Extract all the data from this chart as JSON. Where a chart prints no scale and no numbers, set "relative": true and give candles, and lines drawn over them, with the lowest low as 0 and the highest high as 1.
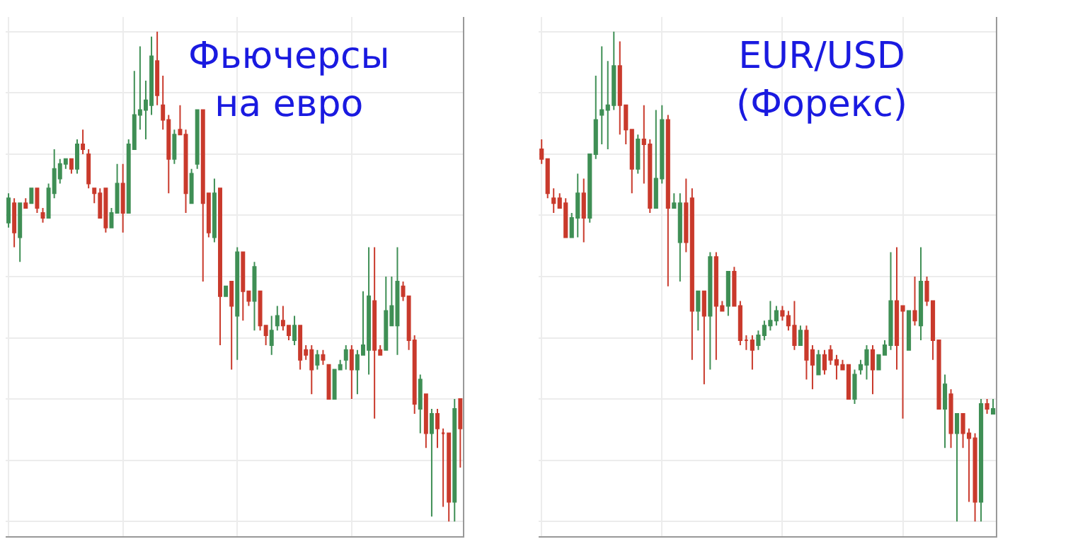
{
  "chart_data": [
    {
      "type": "candlestick",
      "title": "Фьючерсы на евро",
      "relative": true,
      "grid": true,
      "categories": [
        null,
        null,
        null,
        null,
        null,
        null,
        null,
        null,
        null,
        null,
        null,
        null,
        null,
        null,
        null,
        null,
        null,
        null,
        null,
        null,
        null,
        null,
        null,
        null,
        null,
        null,
        null,
        null,
        null,
        null,
        null,
        null,
        null,
        null,
        null,
        null,
        null,
        null,
        null,
        null,
        null,
        null,
        null,
        null,
        null,
        null,
        null,
        null,
        null,
        null,
        null,
        null,
        null,
        null,
        null,
        null,
        null,
        null,
        null,
        null,
        null,
        null,
        null,
        null,
        null,
        null,
        null,
        null,
        null,
        null,
        null,
        null,
        null,
        null,
        null,
        null,
        null,
        null,
        null,
        null
      ],
      "ohlc": [
        [
          0.61,
          0.67,
          0.6,
          0.66
        ],
        [
          0.65,
          0.66,
          0.56,
          0.59
        ],
        [
          0.58,
          0.65,
          0.53,
          0.65
        ],
        [
          0.65,
          0.66,
          0.64,
          0.64
        ],
        [
          0.65,
          0.68,
          0.65,
          0.68
        ],
        [
          0.68,
          0.68,
          0.63,
          0.64
        ],
        [
          0.63,
          0.64,
          0.61,
          0.62
        ],
        [
          0.62,
          0.69,
          0.62,
          0.68
        ],
        [
          0.67,
          0.76,
          0.66,
          0.72
        ],
        [
          0.7,
          0.74,
          0.69,
          0.73
        ],
        [
          0.73,
          0.74,
          0.72,
          0.74
        ],
        [
          0.74,
          0.74,
          0.71,
          0.72
        ],
        [
          0.72,
          0.78,
          0.71,
          0.77
        ],
        [
          0.77,
          0.8,
          0.75,
          0.76
        ],
        [
          0.75,
          0.76,
          0.68,
          0.69
        ],
        [
          0.68,
          0.68,
          0.65,
          0.67
        ],
        [
          0.67,
          0.68,
          0.62,
          0.62
        ],
        [
          0.68,
          0.68,
          0.59,
          0.6
        ],
        [
          0.6,
          0.64,
          0.6,
          0.63
        ],
        [
          0.63,
          0.73,
          0.63,
          0.69
        ],
        [
          0.69,
          0.73,
          0.59,
          0.63
        ],
        [
          0.63,
          0.78,
          0.63,
          0.77
        ],
        [
          0.76,
          0.92,
          0.76,
          0.83
        ],
        [
          0.83,
          0.97,
          0.8,
          0.84
        ],
        [
          0.84,
          0.9,
          0.78,
          0.86
        ],
        [
          0.85,
          0.99,
          0.83,
          0.95
        ],
        [
          0.94,
          1.0,
          0.85,
          0.87
        ],
        [
          0.85,
          0.91,
          0.8,
          0.82
        ],
        [
          0.82,
          0.83,
          0.67,
          0.74
        ],
        [
          0.74,
          0.8,
          0.73,
          0.79
        ],
        [
          0.8,
          0.85,
          0.79,
          0.79
        ],
        [
          0.79,
          0.8,
          0.63,
          0.67
        ],
        [
          0.65,
          0.72,
          0.65,
          0.71
        ],
        [
          0.73,
          0.84,
          0.72,
          0.84
        ],
        [
          0.84,
          0.84,
          0.49,
          0.65
        ],
        [
          0.67,
          0.67,
          0.58,
          0.59
        ],
        [
          0.58,
          0.7,
          0.57,
          0.67
        ],
        [
          0.68,
          0.68,
          0.36,
          0.46
        ],
        [
          0.46,
          0.48,
          0.46,
          0.48
        ],
        [
          0.49,
          0.49,
          0.31,
          0.44
        ],
        [
          0.42,
          0.56,
          0.33,
          0.55
        ],
        [
          0.55,
          0.55,
          0.41,
          0.47
        ],
        [
          0.47,
          0.47,
          0.44,
          0.45
        ],
        [
          0.45,
          0.53,
          0.39,
          0.52
        ],
        [
          0.47,
          0.47,
          0.39,
          0.4
        ],
        [
          0.4,
          0.4,
          0.36,
          0.38
        ],
        [
          0.36,
          0.42,
          0.34,
          0.39
        ],
        [
          0.4,
          0.44,
          0.39,
          0.42
        ],
        [
          0.41,
          0.44,
          0.39,
          0.4
        ],
        [
          0.4,
          0.4,
          0.37,
          0.38
        ],
        [
          0.37,
          0.42,
          0.36,
          0.4
        ],
        [
          0.4,
          0.4,
          0.31,
          0.33
        ],
        [
          0.35,
          0.36,
          0.33,
          0.34
        ],
        [
          0.35,
          0.36,
          0.26,
          0.31
        ],
        [
          0.32,
          0.35,
          0.31,
          0.34
        ],
        [
          0.34,
          0.35,
          0.32,
          0.33
        ],
        [
          0.32,
          0.32,
          0.25,
          0.25
        ],
        [
          0.25,
          0.31,
          0.25,
          0.31
        ],
        [
          0.31,
          0.33,
          0.31,
          0.32
        ],
        [
          0.33,
          0.36,
          0.31,
          0.35
        ],
        [
          0.35,
          0.36,
          0.25,
          0.31
        ],
        [
          0.31,
          0.35,
          0.26,
          0.34
        ],
        [
          0.34,
          0.47,
          0.34,
          0.36
        ],
        [
          0.35,
          0.56,
          0.3,
          0.46
        ],
        [
          0.45,
          0.56,
          0.21,
          0.35
        ],
        [
          0.35,
          0.36,
          0.34,
          0.34
        ],
        [
          0.35,
          0.5,
          0.35,
          0.43
        ],
        [
          0.4,
          0.5,
          0.4,
          0.44
        ],
        [
          0.4,
          0.56,
          0.34,
          0.49
        ],
        [
          0.48,
          0.49,
          0.45,
          0.46
        ],
        [
          0.46,
          0.46,
          0.35,
          0.37
        ],
        [
          0.37,
          0.38,
          0.22,
          0.24
        ],
        [
          0.23,
          0.3,
          0.18,
          0.29
        ],
        [
          0.26,
          0.26,
          0.15,
          0.18
        ],
        [
          0.18,
          0.23,
          0.01,
          0.22
        ],
        [
          0.22,
          0.23,
          0.15,
          0.19
        ],
        [
          0.18,
          0.19,
          0.03,
          0.18
        ],
        [
          0.18,
          0.18,
          0.0,
          0.04
        ],
        [
          0.04,
          0.25,
          0.0,
          0.23
        ],
        [
          0.25,
          0.25,
          0.11,
          0.19
        ]
      ]
    },
    {
      "type": "candlestick",
      "title": "EUR/USD (Форекс)",
      "relative": true,
      "grid": true,
      "categories": [
        null,
        null,
        null,
        null,
        null,
        null,
        null,
        null,
        null,
        null,
        null,
        null,
        null,
        null,
        null,
        null,
        null,
        null,
        null,
        null,
        null,
        null,
        null,
        null,
        null,
        null,
        null,
        null,
        null,
        null,
        null,
        null,
        null,
        null,
        null,
        null,
        null,
        null,
        null,
        null,
        null,
        null,
        null,
        null,
        null,
        null,
        null,
        null,
        null,
        null,
        null,
        null,
        null,
        null,
        null,
        null,
        null,
        null,
        null,
        null,
        null,
        null,
        null,
        null,
        null,
        null,
        null,
        null,
        null,
        null,
        null,
        null,
        null,
        null,
        null,
        null
      ],
      "ohlc": [
        [
          0.76,
          0.78,
          0.73,
          0.74
        ],
        [
          0.74,
          0.74,
          0.66,
          0.67
        ],
        [
          0.66,
          0.68,
          0.63,
          0.65
        ],
        [
          0.66,
          0.67,
          0.64,
          0.64
        ],
        [
          0.65,
          0.66,
          0.58,
          0.58
        ],
        [
          0.58,
          0.63,
          0.58,
          0.62
        ],
        [
          0.62,
          0.71,
          0.58,
          0.67
        ],
        [
          0.67,
          0.7,
          0.57,
          0.62
        ],
        [
          0.62,
          0.75,
          0.61,
          0.75
        ],
        [
          0.75,
          0.91,
          0.74,
          0.82
        ],
        [
          0.83,
          0.97,
          0.77,
          0.84
        ],
        [
          0.84,
          0.94,
          0.76,
          0.85
        ],
        [
          0.85,
          1.0,
          0.84,
          0.93
        ],
        [
          0.93,
          0.98,
          0.79,
          0.85
        ],
        [
          0.85,
          0.85,
          0.77,
          0.8
        ],
        [
          0.8,
          0.8,
          0.67,
          0.72
        ],
        [
          0.72,
          0.79,
          0.71,
          0.78
        ],
        [
          0.78,
          0.85,
          0.69,
          0.77
        ],
        [
          0.77,
          0.78,
          0.63,
          0.64
        ],
        [
          0.64,
          0.84,
          0.64,
          0.7
        ],
        [
          0.7,
          0.85,
          0.69,
          0.82
        ],
        [
          0.82,
          0.83,
          0.48,
          0.64
        ],
        [
          0.64,
          0.67,
          0.64,
          0.65
        ],
        [
          0.57,
          0.67,
          0.49,
          0.65
        ],
        [
          0.65,
          0.7,
          0.55,
          0.57
        ],
        [
          0.66,
          0.68,
          0.33,
          0.43
        ],
        [
          0.43,
          0.47,
          0.39,
          0.47
        ],
        [
          0.47,
          0.47,
          0.28,
          0.42
        ],
        [
          0.42,
          0.55,
          0.31,
          0.54
        ],
        [
          0.54,
          0.55,
          0.33,
          0.44
        ],
        [
          0.44,
          0.45,
          0.43,
          0.43
        ],
        [
          0.44,
          0.51,
          0.42,
          0.51
        ],
        [
          0.51,
          0.52,
          0.44,
          0.44
        ],
        [
          0.44,
          0.45,
          0.36,
          0.37
        ],
        [
          0.37,
          0.38,
          0.35,
          0.37
        ],
        [
          0.37,
          0.38,
          0.31,
          0.35
        ],
        [
          0.36,
          0.39,
          0.35,
          0.38
        ],
        [
          0.38,
          0.41,
          0.37,
          0.4
        ],
        [
          0.4,
          0.45,
          0.39,
          0.41
        ],
        [
          0.41,
          0.44,
          0.4,
          0.43
        ],
        [
          0.43,
          0.44,
          0.41,
          0.42
        ],
        [
          0.42,
          0.43,
          0.39,
          0.4
        ],
        [
          0.4,
          0.45,
          0.35,
          0.36
        ],
        [
          0.36,
          0.4,
          0.36,
          0.39
        ],
        [
          0.39,
          0.4,
          0.29,
          0.33
        ],
        [
          0.35,
          0.36,
          0.27,
          0.32
        ],
        [
          0.3,
          0.35,
          0.3,
          0.34
        ],
        [
          0.34,
          0.35,
          0.3,
          0.31
        ],
        [
          0.35,
          0.36,
          0.32,
          0.33
        ],
        [
          0.33,
          0.34,
          0.29,
          0.32
        ],
        [
          0.32,
          0.33,
          0.31,
          0.31
        ],
        [
          0.32,
          0.32,
          0.25,
          0.25
        ],
        [
          0.25,
          0.31,
          0.24,
          0.3
        ],
        [
          0.31,
          0.33,
          0.3,
          0.32
        ],
        [
          0.32,
          0.36,
          0.29,
          0.35
        ],
        [
          0.35,
          0.36,
          0.26,
          0.31
        ],
        [
          0.31,
          0.34,
          0.31,
          0.34
        ],
        [
          0.34,
          0.37,
          0.34,
          0.36
        ],
        [
          0.36,
          0.55,
          0.35,
          0.45
        ],
        [
          0.45,
          0.56,
          0.31,
          0.36
        ],
        [
          0.44,
          0.44,
          0.21,
          0.43
        ],
        [
          0.35,
          0.43,
          0.35,
          0.43
        ],
        [
          0.43,
          0.5,
          0.4,
          0.41
        ],
        [
          0.4,
          0.56,
          0.37,
          0.49
        ],
        [
          0.49,
          0.5,
          0.44,
          0.45
        ],
        [
          0.45,
          0.45,
          0.33,
          0.37
        ],
        [
          0.37,
          0.37,
          0.23,
          0.23
        ],
        [
          0.23,
          0.3,
          0.15,
          0.28
        ],
        [
          0.26,
          0.27,
          0.15,
          0.18
        ],
        [
          0.18,
          0.22,
          0.0,
          0.22
        ],
        [
          0.22,
          0.22,
          0.15,
          0.18
        ],
        [
          0.18,
          0.19,
          0.04,
          0.17
        ],
        [
          0.17,
          0.18,
          0.0,
          0.04
        ],
        [
          0.04,
          0.25,
          0.0,
          0.24
        ],
        [
          0.24,
          0.25,
          0.22,
          0.23
        ],
        [
          0.22,
          0.25,
          0.22,
          0.23
        ]
      ]
    }
  ]
}
